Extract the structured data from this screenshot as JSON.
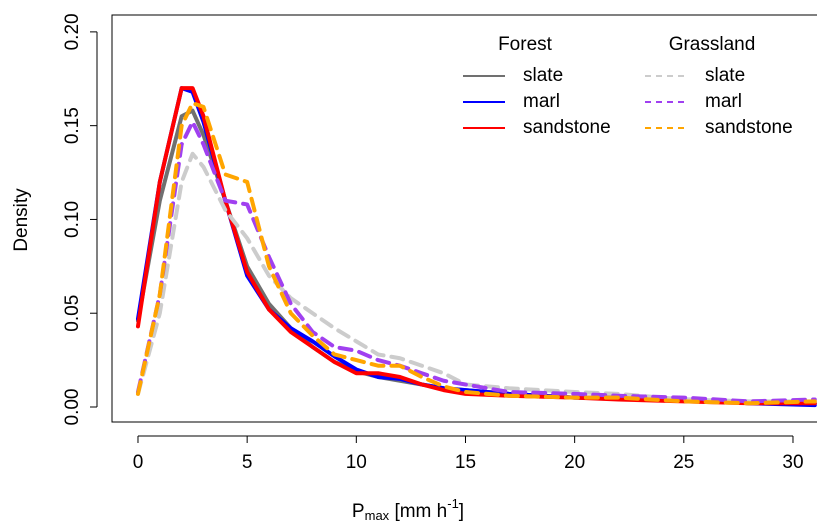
{
  "chart_data": {
    "type": "line",
    "ylabel": "Density",
    "xlabel_parts": [
      "P",
      "max",
      " [mm h",
      "-1",
      "]"
    ],
    "legend_groups": [
      "Forest",
      "Grassland"
    ],
    "x": [
      0,
      1,
      2,
      2.5,
      3,
      4,
      5,
      6,
      7,
      8,
      9,
      10,
      11,
      12,
      13,
      14,
      15,
      17,
      20,
      22,
      25,
      28,
      31
    ],
    "series": [
      {
        "name": "slate",
        "group": 0,
        "color": "#707070",
        "dashed": false,
        "values": [
          0.046,
          0.11,
          0.155,
          0.158,
          0.145,
          0.11,
          0.075,
          0.055,
          0.042,
          0.032,
          0.024,
          0.019,
          0.016,
          0.014,
          0.012,
          0.01,
          0.009,
          0.007,
          0.005,
          0.005,
          0.004,
          0.002,
          0.002
        ]
      },
      {
        "name": "marl",
        "group": 0,
        "color": "#0000ff",
        "dashed": false,
        "values": [
          0.047,
          0.12,
          0.17,
          0.168,
          0.152,
          0.11,
          0.07,
          0.052,
          0.042,
          0.035,
          0.027,
          0.02,
          0.016,
          0.015,
          0.012,
          0.01,
          0.009,
          0.007,
          0.005,
          0.005,
          0.004,
          0.002,
          0.001
        ]
      },
      {
        "name": "sandstone",
        "group": 0,
        "color": "#ff0000",
        "dashed": false,
        "values": [
          0.043,
          0.12,
          0.17,
          0.17,
          0.155,
          0.11,
          0.072,
          0.052,
          0.04,
          0.032,
          0.024,
          0.018,
          0.018,
          0.016,
          0.012,
          0.009,
          0.007,
          0.006,
          0.005,
          0.004,
          0.003,
          0.002,
          0.002
        ]
      },
      {
        "name": "slate",
        "group": 1,
        "color": "#cccccc",
        "dashed": true,
        "values": [
          0.007,
          0.05,
          0.12,
          0.135,
          0.128,
          0.105,
          0.09,
          0.07,
          0.058,
          0.05,
          0.042,
          0.035,
          0.028,
          0.026,
          0.022,
          0.018,
          0.012,
          0.01,
          0.008,
          0.007,
          0.004,
          0.003,
          0.003
        ]
      },
      {
        "name": "marl",
        "group": 1,
        "color": "#a040f0",
        "dashed": true,
        "values": [
          0.008,
          0.06,
          0.14,
          0.152,
          0.14,
          0.11,
          0.108,
          0.08,
          0.055,
          0.04,
          0.032,
          0.03,
          0.025,
          0.022,
          0.018,
          0.014,
          0.012,
          0.008,
          0.007,
          0.006,
          0.005,
          0.003,
          0.004
        ]
      },
      {
        "name": "sandstone",
        "group": 1,
        "color": "#ffa500",
        "dashed": true,
        "values": [
          0.007,
          0.06,
          0.15,
          0.162,
          0.16,
          0.124,
          0.12,
          0.075,
          0.05,
          0.038,
          0.028,
          0.025,
          0.022,
          0.022,
          0.016,
          0.011,
          0.008,
          0.006,
          0.005,
          0.005,
          0.003,
          0.002,
          0.003
        ]
      }
    ],
    "xlim": [
      -1.19,
      31.1
    ],
    "ylim": [
      -0.008,
      0.209
    ],
    "xticks": [
      0,
      5,
      10,
      15,
      20,
      25,
      30
    ],
    "yticks": [
      {
        "value": 0,
        "label": "0.00"
      },
      {
        "value": 0.05,
        "label": "0.05"
      },
      {
        "value": 0.1,
        "label": "0.10"
      },
      {
        "value": 0.15,
        "label": "0.15"
      },
      {
        "value": 0.2,
        "label": "0.20"
      }
    ],
    "grid": false
  }
}
